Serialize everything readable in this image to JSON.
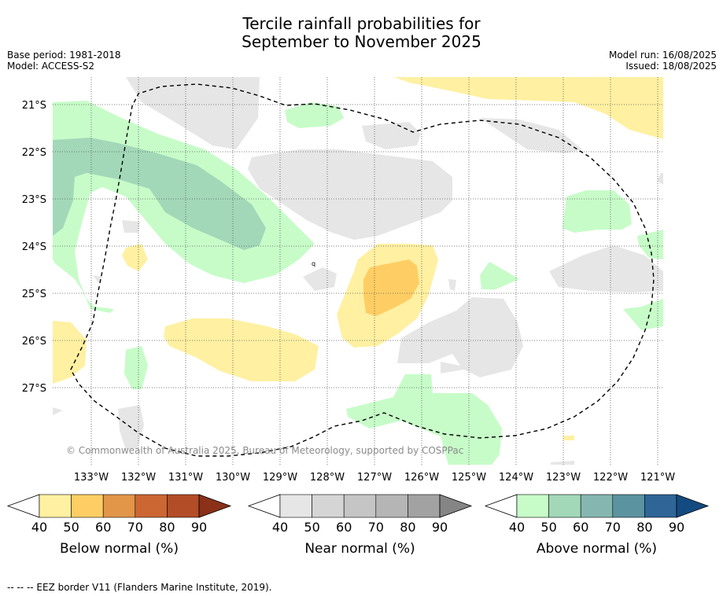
{
  "title_line1": "Tercile rainfall probabilities for",
  "title_line2": "September to November 2025",
  "meta": {
    "base_period": "Base period: 1981-2018",
    "model": "Model: ACCESS-S2",
    "model_run": "Model run: 16/08/2025",
    "issued": "Issued: 18/08/2025"
  },
  "map": {
    "lat_labels": [
      "21°S",
      "22°S",
      "23°S",
      "24°S",
      "25°S",
      "26°S",
      "27°S"
    ],
    "lon_labels": [
      "133°W",
      "132°W",
      "131°W",
      "130°W",
      "129°W",
      "128°W",
      "127°W",
      "126°W",
      "125°W",
      "124°W",
      "123°W",
      "122°W",
      "121°W"
    ],
    "copyright": "© Commonwealth of Australia 2025, Bureau of Meteorology, supported by COSPPac",
    "marker_q": "q"
  },
  "colorbars": [
    {
      "title": "Below normal (%)",
      "ticks": [
        "40",
        "50",
        "60",
        "70",
        "80",
        "90"
      ],
      "colors": [
        "#ffffff",
        "#fff0a2",
        "#fece64",
        "#e19648",
        "#cc6633",
        "#b34d27",
        "#8b3019"
      ]
    },
    {
      "title": "Near normal (%)",
      "ticks": [
        "40",
        "50",
        "60",
        "70",
        "80",
        "90"
      ],
      "colors": [
        "#ffffff",
        "#e6e6e6",
        "#d5d5d5",
        "#c5c5c5",
        "#b5b5b5",
        "#a2a2a2",
        "#858585"
      ]
    },
    {
      "title": "Above normal (%)",
      "ticks": [
        "40",
        "50",
        "60",
        "70",
        "80",
        "90"
      ],
      "colors": [
        "#ffffff",
        "#c7fcc8",
        "#a2d8b8",
        "#85b7b0",
        "#5b93a0",
        "#2f6597",
        "#134b80"
      ]
    }
  ],
  "source_note": "--  --  -- EEZ border V11 (Flanders Marine Institute, 2019)."
}
